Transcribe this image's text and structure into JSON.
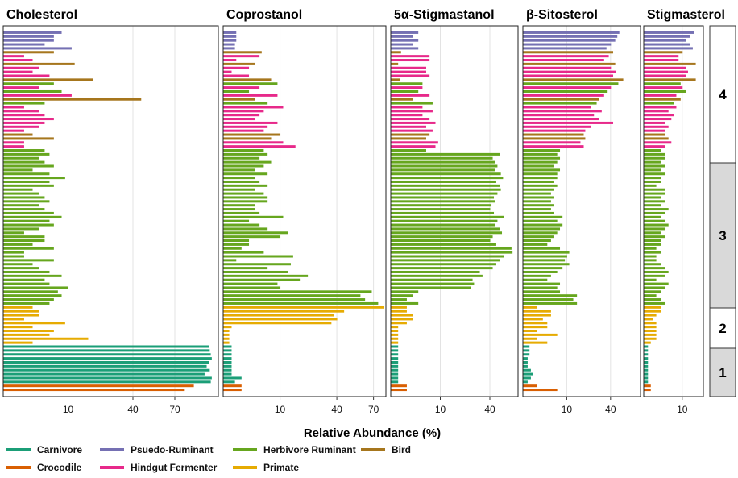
{
  "chart_data": {
    "type": "bar",
    "orientation": "horizontal",
    "title": "",
    "xlabel": "Relative Abundance (%)",
    "ylabel": "",
    "grid": true,
    "x_scale": "sqrt",
    "legend_position": "bottom",
    "colors": {
      "Carnivore": "#1b9e77",
      "Crocodile": "#d95f02",
      "Psuedo-Ruminant": "#7570b3",
      "Hindgut Fermenter": "#e7298a",
      "Herbivore Ruminant": "#66a61e",
      "Primate": "#e6ab02",
      "Bird": "#a6761d"
    },
    "legend": [
      "Carnivore",
      "Crocodile",
      "Psuedo-Ruminant",
      "Hindgut Fermenter",
      "Herbivore Ruminant",
      "Primate",
      "Bird"
    ],
    "groups": [
      {
        "label": "4",
        "rows": 34
      },
      {
        "label": "3",
        "rows": 36
      },
      {
        "label": "2",
        "rows": 10
      },
      {
        "label": "1",
        "rows": 12
      }
    ],
    "row_classes": [
      "Psuedo-Ruminant",
      "Psuedo-Ruminant",
      "Psuedo-Ruminant",
      "Psuedo-Ruminant",
      "Psuedo-Ruminant",
      "Bird",
      "Hindgut Fermenter",
      "Hindgut Fermenter",
      "Bird",
      "Hindgut Fermenter",
      "Hindgut Fermenter",
      "Hindgut Fermenter",
      "Bird",
      "Herbivore Ruminant",
      "Hindgut Fermenter",
      "Herbivore Ruminant",
      "Hindgut Fermenter",
      "Bird",
      "Herbivore Ruminant",
      "Hindgut Fermenter",
      "Hindgut Fermenter",
      "Hindgut Fermenter",
      "Hindgut Fermenter",
      "Hindgut Fermenter",
      "Hindgut Fermenter",
      "Hindgut Fermenter",
      "Bird",
      "Bird",
      "Hindgut Fermenter",
      "Hindgut Fermenter",
      "Herbivore Ruminant",
      "Herbivore Ruminant",
      "Herbivore Ruminant",
      "Herbivore Ruminant",
      "Herbivore Ruminant",
      "Herbivore Ruminant",
      "Herbivore Ruminant",
      "Herbivore Ruminant",
      "Herbivore Ruminant",
      "Herbivore Ruminant",
      "Herbivore Ruminant",
      "Herbivore Ruminant",
      "Herbivore Ruminant",
      "Herbivore Ruminant",
      "Herbivore Ruminant",
      "Herbivore Ruminant",
      "Herbivore Ruminant",
      "Herbivore Ruminant",
      "Herbivore Ruminant",
      "Herbivore Ruminant",
      "Herbivore Ruminant",
      "Herbivore Ruminant",
      "Herbivore Ruminant",
      "Herbivore Ruminant",
      "Herbivore Ruminant",
      "Herbivore Ruminant",
      "Herbivore Ruminant",
      "Herbivore Ruminant",
      "Herbivore Ruminant",
      "Herbivore Ruminant",
      "Herbivore Ruminant",
      "Herbivore Ruminant",
      "Herbivore Ruminant",
      "Herbivore Ruminant",
      "Herbivore Ruminant",
      "Herbivore Ruminant",
      "Herbivore Ruminant",
      "Herbivore Ruminant",
      "Herbivore Ruminant",
      "Herbivore Ruminant",
      "Primate",
      "Primate",
      "Primate",
      "Primate",
      "Primate",
      "Primate",
      "Primate",
      "Primate",
      "Primate",
      "Primate",
      "Carnivore",
      "Carnivore",
      "Carnivore",
      "Carnivore",
      "Carnivore",
      "Carnivore",
      "Carnivore",
      "Carnivore",
      "Carnivore",
      "Carnivore",
      "Crocodile",
      "Crocodile"
    ],
    "panels": [
      {
        "name": "Cholesterol",
        "xlim": [
          0,
          110
        ],
        "ticks": [
          10,
          40,
          70
        ],
        "values": [
          8,
          6,
          6,
          4,
          11,
          6,
          1,
          2,
          12,
          3,
          2,
          5,
          19,
          6,
          3,
          8,
          11,
          45,
          4,
          1,
          3,
          4,
          6,
          4,
          3,
          1,
          2,
          6,
          1,
          1,
          4,
          5,
          3,
          4,
          6,
          2,
          5,
          9,
          5,
          6,
          2,
          3,
          4,
          5,
          3,
          4,
          6,
          8,
          5,
          6,
          3,
          1,
          4,
          4,
          2,
          6,
          1,
          1,
          6,
          2,
          3,
          5,
          8,
          4,
          5,
          10,
          7,
          8,
          6,
          5,
          2,
          3,
          3,
          1,
          9,
          2,
          6,
          5,
          17,
          2,
          100,
          101,
          102,
          103,
          100,
          98,
          101,
          96,
          103,
          102,
          86,
          78
        ]
      },
      {
        "name": "Coprostanol",
        "xlim": [
          0,
          82
        ],
        "ticks": [
          10,
          40,
          70
        ],
        "values": [
          0.5,
          0.5,
          0.5,
          0.4,
          0.4,
          4.5,
          4,
          0.5,
          3,
          2,
          0.2,
          2,
          7,
          9,
          4,
          2,
          9,
          3,
          6,
          11,
          5,
          4,
          3,
          9,
          6,
          5,
          10,
          7,
          11,
          16,
          5,
          6,
          4,
          7,
          5,
          3,
          6,
          3,
          4,
          6,
          3,
          5,
          6,
          6,
          3,
          3,
          4,
          11,
          2,
          4,
          6,
          13,
          10,
          2,
          2,
          1,
          5,
          15,
          0.5,
          14,
          6,
          13,
          22,
          18,
          9,
          10,
          68,
          58,
          62,
          74,
          80,
          45,
          38,
          40,
          36,
          0.2,
          0.1,
          0.1,
          0.1,
          0.1,
          0.2,
          0.2,
          0.2,
          0.2,
          0.2,
          0.2,
          0.2,
          0.2,
          1,
          0.4,
          1,
          1
        ]
      },
      {
        "name": "5α-Stigmastanol",
        "xlim": [
          0,
          66
        ],
        "ticks": [
          10,
          40
        ],
        "values": [
          3,
          2,
          3,
          2,
          3,
          0.4,
          6,
          6,
          0.2,
          5,
          5,
          6,
          0.3,
          4,
          4,
          3,
          6,
          2,
          7,
          4,
          7,
          4,
          6,
          8,
          5,
          7,
          6,
          5,
          9,
          8,
          5,
          48,
          42,
          44,
          46,
          44,
          49,
          51,
          45,
          48,
          49,
          46,
          43,
          44,
          41,
          40,
          43,
          52,
          46,
          44,
          48,
          50,
          42,
          40,
          45,
          59,
          60,
          52,
          48,
          45,
          42,
          32,
          34,
          27,
          28,
          26,
          3,
          2,
          1,
          3,
          1,
          1,
          2,
          2,
          1,
          0.2,
          0.2,
          0.2,
          0.2,
          0.2,
          0.2,
          0.2,
          0.2,
          0.2,
          0.2,
          0.2,
          0.2,
          0.2,
          0.2,
          0.2,
          1,
          1
        ]
      },
      {
        "name": "β-Sitosterol",
        "xlim": [
          0,
          72
        ],
        "ticks": [
          10,
          40
        ],
        "values": [
          48,
          46,
          44,
          40,
          36,
          42,
          38,
          34,
          44,
          40,
          45,
          42,
          52,
          47,
          40,
          37,
          34,
          30,
          28,
          24,
          32,
          26,
          30,
          42,
          24,
          20,
          19,
          20,
          17,
          19,
          7,
          6,
          7,
          6,
          5,
          7,
          6,
          6,
          5,
          6,
          5,
          4,
          5,
          4,
          5,
          4,
          5,
          8,
          6,
          8,
          7,
          6,
          5,
          4,
          3,
          7,
          11,
          10,
          9,
          11,
          8,
          6,
          4,
          3,
          7,
          6,
          7,
          15,
          13,
          15,
          1,
          4,
          4,
          2,
          3,
          3,
          1,
          6,
          1,
          3,
          0.2,
          0.2,
          0.2,
          0.1,
          0.1,
          0.1,
          0.3,
          0.5,
          0.3,
          0.1,
          1,
          6
        ]
      },
      {
        "name": "Stigmasterol",
        "xlim": [
          0,
          24
        ],
        "ticks": [
          10
        ],
        "values": [
          17,
          14,
          12,
          14,
          16,
          10,
          8,
          8,
          18,
          12,
          13,
          12,
          18,
          9,
          10,
          12,
          7,
          9,
          6,
          7,
          4,
          6,
          5,
          3,
          4,
          3,
          3,
          4,
          5,
          3,
          2,
          3,
          3,
          2,
          3,
          2,
          3,
          2,
          2,
          1,
          3,
          3,
          2,
          3,
          2,
          4,
          3,
          2,
          3,
          4,
          3,
          2,
          3,
          2,
          2,
          1,
          2,
          1,
          1,
          2,
          3,
          4,
          3,
          1,
          4,
          3,
          2,
          1,
          2,
          3,
          2,
          2,
          1,
          0.5,
          1,
          1,
          1,
          1,
          1,
          0.3,
          0.1,
          0.1,
          0.1,
          0.1,
          0.1,
          0.1,
          0.1,
          0.1,
          0.1,
          0.1,
          0.3,
          0.3
        ]
      }
    ]
  }
}
